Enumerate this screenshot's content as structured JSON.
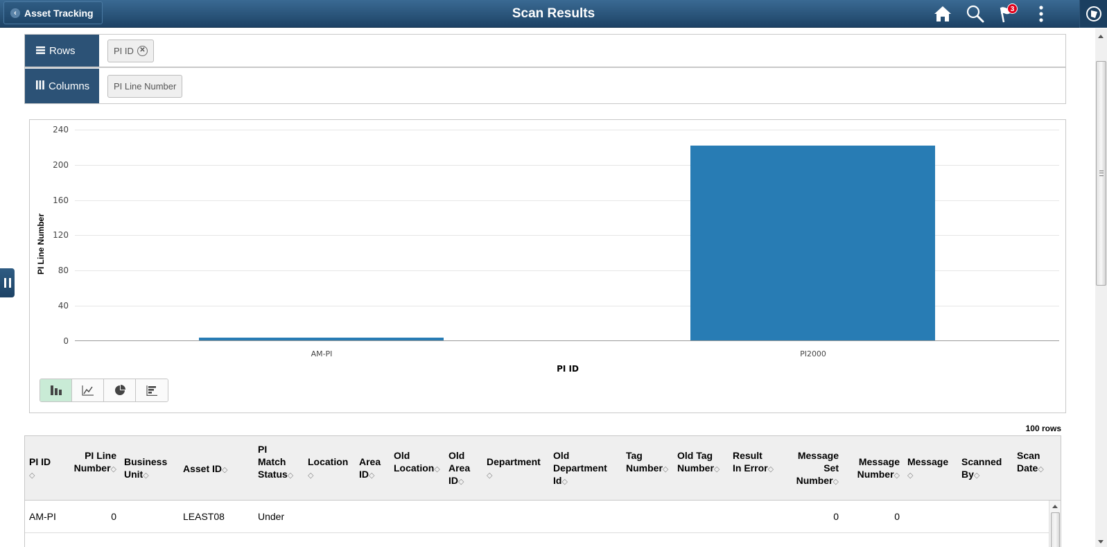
{
  "header": {
    "back_label": "Asset Tracking",
    "title": "Scan Results",
    "icons": [
      "home-icon",
      "search-icon",
      "notifications-flag-icon",
      "actions-menu-icon",
      "navbar-compass-icon"
    ],
    "notification_count": "3"
  },
  "pivot": {
    "rows_label": "Rows",
    "rows_chip": "PI ID",
    "columns_label": "Columns",
    "columns_chip": "PI Line Number"
  },
  "chart_data": {
    "type": "bar",
    "title": "",
    "xlabel": "PI ID",
    "ylabel": "PI Line Number",
    "categories": [
      "AM-PI",
      "PI2000"
    ],
    "values": [
      3,
      222
    ],
    "ylim": [
      0,
      240
    ],
    "yticks": [
      "240",
      "200",
      "160",
      "120",
      "80",
      "40",
      "0"
    ],
    "grid": true,
    "legend": "none",
    "bar_color": "#287cb4"
  },
  "chart_types": [
    {
      "name": "bar-chart",
      "active": true
    },
    {
      "name": "line-chart",
      "active": false
    },
    {
      "name": "pie-chart",
      "active": false
    },
    {
      "name": "horizontal-bar-chart",
      "active": false
    }
  ],
  "grid": {
    "row_count": "100 rows",
    "columns": [
      {
        "label1": "PI ID",
        "label2": ""
      },
      {
        "label1": "PI Line",
        "label2": "Number"
      },
      {
        "label1": "Business",
        "label2": "Unit"
      },
      {
        "label1": "Asset ID",
        "label2": ""
      },
      {
        "label1": "PI",
        "label2": "Match",
        "label3": "Status"
      },
      {
        "label1": "Location",
        "label2": ""
      },
      {
        "label1": "Area",
        "label2": "ID"
      },
      {
        "label1": "Old",
        "label2": "Location"
      },
      {
        "label1": "Old",
        "label2": "Area",
        "label3": "ID"
      },
      {
        "label1": "Department",
        "label2": ""
      },
      {
        "label1": "Old",
        "label2": "Department",
        "label3": "Id"
      },
      {
        "label1": "Tag",
        "label2": "Number"
      },
      {
        "label1": "Old Tag",
        "label2": "Number"
      },
      {
        "label1": "Result",
        "label2": "In Error"
      },
      {
        "label1": "Message",
        "label2": "Set",
        "label3": "Number"
      },
      {
        "label1": "Message",
        "label2": "Number"
      },
      {
        "label1": "Message",
        "label2": ""
      },
      {
        "label1": "Scanned",
        "label2": "By"
      },
      {
        "label1": "Scan",
        "label2": "Date"
      }
    ],
    "rows": [
      {
        "pi_id": "AM-PI",
        "pi_line_number": "0",
        "business_unit": "",
        "asset_id": "LEAST08",
        "pi_match_status": "Under",
        "location": "",
        "area_id": "",
        "old_location": "",
        "old_area_id": "",
        "department": "",
        "old_department_id": "",
        "tag_number": "",
        "old_tag_number": "",
        "result_in_error": "",
        "message_set_number": "0",
        "message_number": "0",
        "message": "",
        "scanned_by": "",
        "scan_date": ""
      }
    ]
  },
  "sort_glyph": "◇"
}
